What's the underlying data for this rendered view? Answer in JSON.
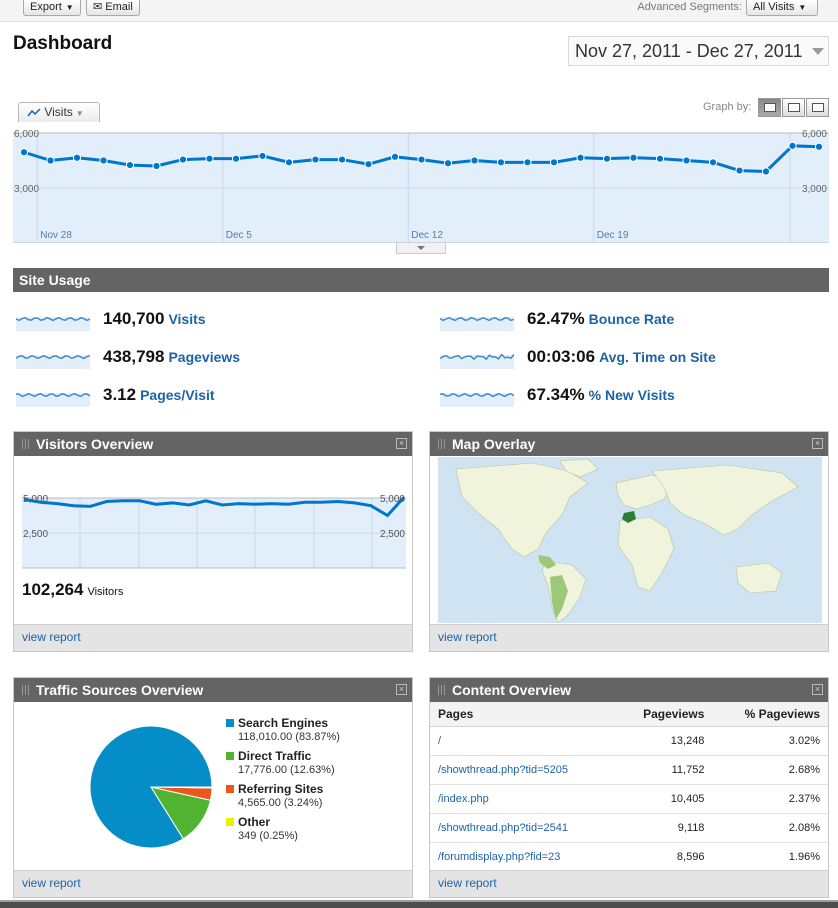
{
  "toolbar": {
    "export_label": "Export",
    "email_label": "Email",
    "advanced_segments_label": "Advanced Segments:",
    "segment_value": "All Visits"
  },
  "header": {
    "title": "Dashboard",
    "date_range": "Nov 27, 2011 - Dec 27, 2011"
  },
  "main_graph": {
    "metric_label": "Visits",
    "graph_by_label": "Graph by:",
    "y_ticks": [
      "6,000",
      "3,000"
    ],
    "x_ticks": [
      "Nov 28",
      "Dec 5",
      "Dec 12",
      "Dec 19"
    ],
    "accent_color": "#0077cc",
    "fill_color": "#e2eef9"
  },
  "chart_data": [
    {
      "type": "area",
      "x": [
        "Nov 27",
        "Nov 28",
        "Nov 29",
        "Nov 30",
        "Dec 1",
        "Dec 2",
        "Dec 3",
        "Dec 4",
        "Dec 5",
        "Dec 6",
        "Dec 7",
        "Dec 8",
        "Dec 9",
        "Dec 10",
        "Dec 11",
        "Dec 12",
        "Dec 13",
        "Dec 14",
        "Dec 15",
        "Dec 16",
        "Dec 17",
        "Dec 18",
        "Dec 19",
        "Dec 20",
        "Dec 21",
        "Dec 22",
        "Dec 23",
        "Dec 24",
        "Dec 25",
        "Dec 26",
        "Dec 27"
      ],
      "series": [
        {
          "name": "Visits",
          "values": [
            4950,
            4500,
            4650,
            4500,
            4250,
            4200,
            4550,
            4600,
            4600,
            4750,
            4400,
            4550,
            4550,
            4300,
            4700,
            4550,
            4350,
            4500,
            4400,
            4400,
            4400,
            4650,
            4600,
            4650,
            4600,
            4500,
            4400,
            3950,
            3900,
            5300,
            5250
          ]
        }
      ],
      "ylim": [
        0,
        6000
      ],
      "y_ticks": [
        3000,
        6000
      ],
      "x_tick_labels": [
        "Nov 28",
        "Dec 5",
        "Dec 12",
        "Dec 19"
      ],
      "grid": true
    },
    {
      "type": "area",
      "series": [
        {
          "name": "Visitors",
          "values": [
            4900,
            4700,
            4600,
            4450,
            4400,
            4750,
            4800,
            4800,
            4550,
            4650,
            4500,
            4800,
            4500,
            4600,
            4550,
            4600,
            4550,
            4700,
            4700,
            4750,
            4650,
            4450,
            3750,
            5050
          ]
        }
      ],
      "ylim": [
        0,
        5000
      ],
      "y_ticks": [
        2500,
        5000
      ],
      "grid": true
    },
    {
      "type": "pie",
      "categories": [
        "Search Engines",
        "Direct Traffic",
        "Referring Sites",
        "Other"
      ],
      "values": [
        118010,
        17776,
        4565,
        349
      ],
      "percentages": [
        83.87,
        12.63,
        3.24,
        0.25
      ],
      "colors": [
        "#058dc7",
        "#50b432",
        "#ed561b",
        "#edef00"
      ]
    }
  ],
  "site_usage": {
    "title": "Site Usage",
    "left": [
      {
        "value": "140,700",
        "label": "Visits"
      },
      {
        "value": "438,798",
        "label": "Pageviews"
      },
      {
        "value": "3.12",
        "label": "Pages/Visit"
      }
    ],
    "right": [
      {
        "value": "62.47%",
        "label": "Bounce Rate"
      },
      {
        "value": "00:03:06",
        "label": "Avg. Time on Site"
      },
      {
        "value": "67.34%",
        "label": "% New Visits"
      }
    ]
  },
  "visitors_overview": {
    "title": "Visitors Overview",
    "y_ticks": [
      "5,000",
      "2,500"
    ],
    "visitors_value": "102,264",
    "visitors_label": "Visitors",
    "view_report": "view report"
  },
  "map_overlay": {
    "title": "Map Overlay",
    "view_report": "view report"
  },
  "traffic_sources": {
    "title": "Traffic Sources Overview",
    "items": [
      {
        "name": "Search Engines",
        "stat": "118,010.00 (83.87%)"
      },
      {
        "name": "Direct Traffic",
        "stat": "17,776.00 (12.63%)"
      },
      {
        "name": "Referring Sites",
        "stat": "4,565.00 (3.24%)"
      },
      {
        "name": "Other",
        "stat": "349 (0.25%)"
      }
    ],
    "view_report": "view report"
  },
  "content_overview": {
    "title": "Content Overview",
    "columns": [
      "Pages",
      "Pageviews",
      "% Pageviews"
    ],
    "rows": [
      [
        "/",
        "13,248",
        "3.02%"
      ],
      [
        "/showthread.php?tid=5205",
        "11,752",
        "2.68%"
      ],
      [
        "/index.php",
        "10,405",
        "2.37%"
      ],
      [
        "/showthread.php?tid=2541",
        "9,118",
        "2.08%"
      ],
      [
        "/forumdisplay.php?fid=23",
        "8,596",
        "1.96%"
      ]
    ],
    "view_report": "view report"
  }
}
